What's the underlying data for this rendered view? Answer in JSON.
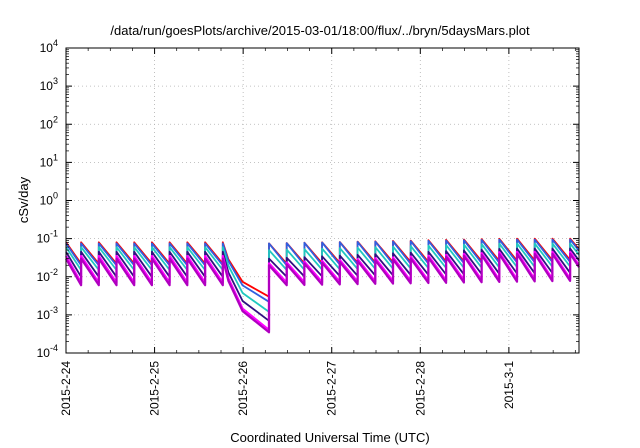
{
  "chart_data": {
    "type": "line",
    "title": "/data/run/goesPlots/archive/2015-03-01/18:00/flux/../bryn/5daysMars.plot",
    "xlabel": "Coordinated Universal Time (UTC)",
    "ylabel": "cSv/day",
    "yscale": "log",
    "ylim": [
      0.0001,
      10000
    ],
    "xlim": [
      "2015-02-24T00:00",
      "2015-03-01T19:00"
    ],
    "x_ticks": [
      "2015-2-24",
      "2015-2-25",
      "2015-2-26",
      "2015-2-27",
      "2015-2-28",
      "2015-3-1"
    ],
    "y_ticks": [
      {
        "base": "10",
        "exp": "-4"
      },
      {
        "base": "10",
        "exp": "-3"
      },
      {
        "base": "10",
        "exp": "-2"
      },
      {
        "base": "10",
        "exp": "-1"
      },
      {
        "base": "10",
        "exp": "0"
      },
      {
        "base": "10",
        "exp": "1"
      },
      {
        "base": "10",
        "exp": "2"
      },
      {
        "base": "10",
        "exp": "3"
      },
      {
        "base": "10",
        "exp": "4"
      }
    ],
    "grid": true,
    "legend": "none",
    "notes": "Six overlapping series with a sawtooth pattern (about 5 cycles per day); dip between 2015-2-25 20:00 and 2015-2-26 07:00.",
    "series": [
      {
        "color": "#ff0000",
        "peak": [
          0.08,
          0.03,
          0.1
        ],
        "trough": [
          0.022,
          0.003,
          0.028
        ]
      },
      {
        "color": "#3060e0",
        "peak": [
          0.075,
          0.03,
          0.095
        ],
        "trough": [
          0.02,
          0.0022,
          0.025
        ]
      },
      {
        "color": "#20c8c0",
        "peak": [
          0.06,
          0.02,
          0.075
        ],
        "trough": [
          0.015,
          0.0012,
          0.019
        ]
      },
      {
        "color": "#301080",
        "peak": [
          0.045,
          0.012,
          0.055
        ],
        "trough": [
          0.01,
          0.0007,
          0.013
        ]
      },
      {
        "color": "#ff00ff",
        "peak": [
          0.035,
          0.009,
          0.045
        ],
        "trough": [
          0.007,
          0.0004,
          0.009
        ]
      },
      {
        "color": "#b000c0",
        "peak": [
          0.03,
          0.008,
          0.04
        ],
        "trough": [
          0.006,
          0.00035,
          0.008
        ]
      }
    ]
  }
}
